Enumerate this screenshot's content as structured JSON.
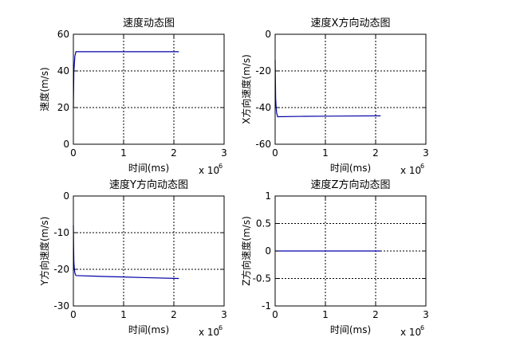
{
  "chart_data": [
    {
      "type": "line",
      "title": "速度动态图",
      "xlabel": "时间(ms)",
      "ylabel": "速度(m/s)",
      "x_multiplier": "x 10",
      "x_multiplier_exp": "6",
      "xlim": [
        0,
        3
      ],
      "ylim": [
        0,
        60
      ],
      "xticks": [
        0,
        1,
        2,
        3
      ],
      "yticks": [
        0,
        20,
        40,
        60
      ],
      "xtick_labels": [
        "0",
        "1",
        "2",
        "3"
      ],
      "ytick_labels": [
        "0",
        "20",
        "40",
        "60"
      ],
      "grid": true,
      "grid_style": "dashed",
      "series": [
        {
          "color": "#0000aa",
          "x": [
            0.0,
            0.005,
            0.01,
            0.02,
            0.03,
            0.05,
            0.5,
            1.0,
            1.5,
            2.1
          ],
          "y": [
            20,
            30,
            40,
            44,
            48,
            50.5,
            50.5,
            50.5,
            50.5,
            50.5
          ]
        }
      ]
    },
    {
      "type": "line",
      "title": "速度X方向动态图",
      "xlabel": "时间(ms)",
      "ylabel": "X方向速度(m/s)",
      "x_multiplier": "x 10",
      "x_multiplier_exp": "6",
      "xlim": [
        0,
        3
      ],
      "ylim": [
        -60,
        0
      ],
      "xticks": [
        0,
        1,
        2,
        3
      ],
      "yticks": [
        -60,
        -40,
        -20,
        0
      ],
      "xtick_labels": [
        "0",
        "1",
        "2",
        "3"
      ],
      "ytick_labels": [
        "-60",
        "-40",
        "-20",
        "0"
      ],
      "grid": true,
      "grid_style": "dashed",
      "series": [
        {
          "color": "#0000aa",
          "x": [
            0.0,
            0.005,
            0.01,
            0.02,
            0.03,
            0.05,
            0.5,
            1.0,
            1.5,
            2.1
          ],
          "y": [
            -14,
            -25,
            -35,
            -40,
            -43,
            -45,
            -44.8,
            -44.7,
            -44.6,
            -44.5
          ]
        }
      ]
    },
    {
      "type": "line",
      "title": "速度Y方向动态图",
      "xlabel": "时间(ms)",
      "ylabel": "Y方向速度(m/s)",
      "x_multiplier": "x 10",
      "x_multiplier_exp": "6",
      "xlim": [
        0,
        3
      ],
      "ylim": [
        -30,
        0
      ],
      "xticks": [
        0,
        1,
        2,
        3
      ],
      "yticks": [
        -30,
        -20,
        -10,
        0
      ],
      "xtick_labels": [
        "0",
        "1",
        "2",
        "3"
      ],
      "ytick_labels": [
        "-30",
        "-20",
        "-10",
        "0"
      ],
      "grid": true,
      "grid_style": "dashed",
      "series": [
        {
          "color": "#0000aa",
          "x": [
            0.0,
            0.005,
            0.01,
            0.02,
            0.03,
            0.05,
            0.5,
            1.0,
            1.5,
            2.1
          ],
          "y": [
            -8,
            -14,
            -18,
            -20,
            -21,
            -21.7,
            -21.9,
            -22.1,
            -22.3,
            -22.5
          ]
        }
      ]
    },
    {
      "type": "line",
      "title": "速度Z方向动态图",
      "xlabel": "时间(ms)",
      "ylabel": "Z方向速度(m/s)",
      "x_multiplier": "x 10",
      "x_multiplier_exp": "6",
      "xlim": [
        0,
        3
      ],
      "ylim": [
        -1,
        1
      ],
      "xticks": [
        0,
        1,
        2,
        3
      ],
      "yticks": [
        -1,
        -0.5,
        0,
        0.5,
        1
      ],
      "xtick_labels": [
        "0",
        "1",
        "2",
        "3"
      ],
      "ytick_labels": [
        "-1",
        "-0.5",
        "0",
        "0.5",
        "1"
      ],
      "grid": true,
      "grid_style": "dashed",
      "series": [
        {
          "color": "#0000aa",
          "x": [
            0.0,
            0.5,
            1.0,
            1.5,
            2.1
          ],
          "y": [
            0,
            0,
            0,
            0,
            0
          ]
        }
      ]
    }
  ]
}
